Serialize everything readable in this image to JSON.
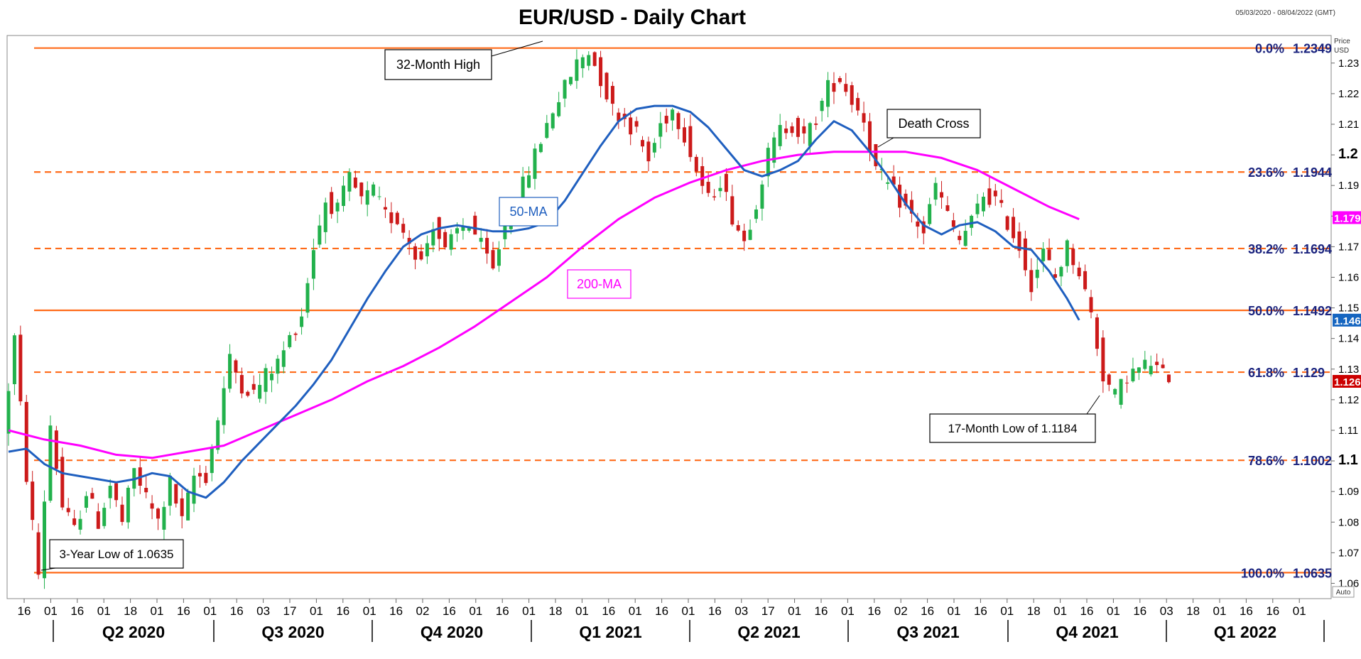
{
  "chart_data": {
    "type": "candlestick",
    "title": "EUR/USD - Daily Chart",
    "date_range": "05/03/2020 - 08/04/2022 (GMT)",
    "y_axis_label_1": "Price",
    "y_axis_label_2": "USD",
    "ylim": [
      1.055,
      1.239
    ],
    "y_ticks": [
      "1.06",
      "1.07",
      "1.08",
      "1.09",
      "1.1",
      "1.11",
      "1.12",
      "1.13",
      "1.14",
      "1.15",
      "1.16",
      "1.17",
      "1.18",
      "1.19",
      "1.2",
      "1.21",
      "1.22",
      "1.23"
    ],
    "y_ticks_bold": [
      "1.1",
      "1.2"
    ],
    "auto_label": "Auto",
    "x_day_ticks": [
      "16",
      "01",
      "16",
      "01",
      "18",
      "01",
      "16",
      "01",
      "16",
      "03",
      "17",
      "01",
      "16",
      "01",
      "16",
      "02",
      "16",
      "01",
      "16",
      "01",
      "18",
      "01",
      "16",
      "01",
      "16",
      "01",
      "16",
      "03",
      "17",
      "01",
      "16",
      "01",
      "16",
      "02",
      "16",
      "01",
      "16",
      "01",
      "18",
      "01",
      "16",
      "01",
      "16",
      "03",
      "18",
      "01",
      "16",
      "16",
      "01"
    ],
    "quarters": [
      "Q2 2020",
      "Q3 2020",
      "Q4 2020",
      "Q1 2021",
      "Q2 2021",
      "Q3 2021",
      "Q4 2021",
      "Q1 2022"
    ],
    "fib_levels": [
      {
        "pct": "0.0%",
        "value": "1.2349",
        "price": 1.2349,
        "style": "solid"
      },
      {
        "pct": "23.6%",
        "value": "1.1944",
        "price": 1.1944,
        "style": "dashed"
      },
      {
        "pct": "38.2%",
        "value": "1.1694",
        "price": 1.1694,
        "style": "dashed"
      },
      {
        "pct": "50.0%",
        "value": "1.1492",
        "price": 1.1492,
        "style": "solid"
      },
      {
        "pct": "61.8%",
        "value": "1.129",
        "price": 1.129,
        "style": "dashed"
      },
      {
        "pct": "78.6%",
        "value": "1.1002",
        "price": 1.1002,
        "style": "dashed"
      },
      {
        "pct": "100.0%",
        "value": "1.0635",
        "price": 1.0635,
        "style": "solid"
      }
    ],
    "price_tags": [
      {
        "label": "1.1795",
        "price": 1.1795,
        "color": "#ff00ff"
      },
      {
        "label": "1.1460",
        "price": 1.146,
        "color": "#1565c0"
      },
      {
        "label": "1.126",
        "price": 1.126,
        "color": "#cc0000"
      }
    ],
    "ma50": {
      "name": "50-MA",
      "color": "#1f5fbf",
      "points": [
        [
          0,
          1.103
        ],
        [
          3,
          1.104
        ],
        [
          6,
          1.099
        ],
        [
          9,
          1.096
        ],
        [
          12,
          1.095
        ],
        [
          15,
          1.094
        ],
        [
          18,
          1.093
        ],
        [
          21,
          1.094
        ],
        [
          24,
          1.096
        ],
        [
          27,
          1.095
        ],
        [
          30,
          1.09
        ],
        [
          33,
          1.088
        ],
        [
          36,
          1.093
        ],
        [
          39,
          1.1
        ],
        [
          42,
          1.106
        ],
        [
          45,
          1.112
        ],
        [
          48,
          1.118
        ],
        [
          51,
          1.125
        ],
        [
          54,
          1.133
        ],
        [
          57,
          1.143
        ],
        [
          60,
          1.153
        ],
        [
          63,
          1.162
        ],
        [
          66,
          1.17
        ],
        [
          69,
          1.174
        ],
        [
          72,
          1.176
        ],
        [
          75,
          1.177
        ],
        [
          78,
          1.176
        ],
        [
          81,
          1.175
        ],
        [
          84,
          1.175
        ],
        [
          87,
          1.176
        ],
        [
          90,
          1.178
        ],
        [
          93,
          1.185
        ],
        [
          96,
          1.194
        ],
        [
          99,
          1.203
        ],
        [
          102,
          1.211
        ],
        [
          105,
          1.215
        ],
        [
          108,
          1.216
        ],
        [
          111,
          1.216
        ],
        [
          114,
          1.214
        ],
        [
          117,
          1.209
        ],
        [
          120,
          1.202
        ],
        [
          123,
          1.195
        ],
        [
          126,
          1.193
        ],
        [
          129,
          1.195
        ],
        [
          132,
          1.198
        ],
        [
          135,
          1.205
        ],
        [
          138,
          1.211
        ],
        [
          141,
          1.208
        ],
        [
          144,
          1.201
        ],
        [
          147,
          1.193
        ],
        [
          150,
          1.184
        ],
        [
          153,
          1.177
        ],
        [
          156,
          1.174
        ],
        [
          159,
          1.177
        ],
        [
          162,
          1.178
        ],
        [
          165,
          1.175
        ],
        [
          168,
          1.17
        ],
        [
          171,
          1.169
        ],
        [
          174,
          1.162
        ],
        [
          177,
          1.153
        ],
        [
          179,
          1.146
        ]
      ]
    },
    "ma200": {
      "name": "200-MA",
      "color": "#ff00ff",
      "points": [
        [
          0,
          1.11
        ],
        [
          6,
          1.107
        ],
        [
          12,
          1.105
        ],
        [
          18,
          1.102
        ],
        [
          24,
          1.101
        ],
        [
          30,
          1.103
        ],
        [
          36,
          1.105
        ],
        [
          42,
          1.11
        ],
        [
          48,
          1.115
        ],
        [
          54,
          1.12
        ],
        [
          60,
          1.126
        ],
        [
          66,
          1.131
        ],
        [
          72,
          1.137
        ],
        [
          78,
          1.144
        ],
        [
          84,
          1.152
        ],
        [
          90,
          1.16
        ],
        [
          96,
          1.17
        ],
        [
          102,
          1.179
        ],
        [
          108,
          1.186
        ],
        [
          114,
          1.191
        ],
        [
          120,
          1.195
        ],
        [
          126,
          1.198
        ],
        [
          132,
          1.2
        ],
        [
          138,
          1.201
        ],
        [
          144,
          1.201
        ],
        [
          150,
          1.201
        ],
        [
          156,
          1.199
        ],
        [
          162,
          1.195
        ],
        [
          168,
          1.189
        ],
        [
          174,
          1.183
        ],
        [
          179,
          1.179
        ]
      ]
    },
    "annotations": [
      {
        "text": "32-Month High"
      },
      {
        "text": "50-MA"
      },
      {
        "text": "200-MA"
      },
      {
        "text": "Death Cross"
      },
      {
        "text": "17-Month Low of 1.1184"
      },
      {
        "text": "3-Year Low of 1.0635"
      }
    ],
    "candle_path": [
      [
        0,
        1.108
      ],
      [
        2,
        1.14
      ],
      [
        4,
        1.095
      ],
      [
        6,
        1.063
      ],
      [
        8,
        1.112
      ],
      [
        10,
        1.085
      ],
      [
        12,
        1.077
      ],
      [
        14,
        1.09
      ],
      [
        16,
        1.08
      ],
      [
        18,
        1.092
      ],
      [
        20,
        1.08
      ],
      [
        22,
        1.097
      ],
      [
        24,
        1.088
      ],
      [
        26,
        1.08
      ],
      [
        28,
        1.093
      ],
      [
        30,
        1.08
      ],
      [
        32,
        1.095
      ],
      [
        34,
        1.095
      ],
      [
        36,
        1.114
      ],
      [
        38,
        1.133
      ],
      [
        40,
        1.125
      ],
      [
        42,
        1.122
      ],
      [
        44,
        1.128
      ],
      [
        46,
        1.132
      ],
      [
        48,
        1.14
      ],
      [
        50,
        1.148
      ],
      [
        52,
        1.17
      ],
      [
        54,
        1.185
      ],
      [
        56,
        1.182
      ],
      [
        58,
        1.192
      ],
      [
        60,
        1.185
      ],
      [
        62,
        1.188
      ],
      [
        64,
        1.18
      ],
      [
        66,
        1.179
      ],
      [
        68,
        1.172
      ],
      [
        70,
        1.165
      ],
      [
        72,
        1.178
      ],
      [
        74,
        1.168
      ],
      [
        76,
        1.175
      ],
      [
        78,
        1.178
      ],
      [
        80,
        1.17
      ],
      [
        82,
        1.162
      ],
      [
        84,
        1.178
      ],
      [
        86,
        1.185
      ],
      [
        88,
        1.195
      ],
      [
        90,
        1.205
      ],
      [
        92,
        1.215
      ],
      [
        94,
        1.222
      ],
      [
        96,
        1.23
      ],
      [
        98,
        1.234
      ],
      [
        100,
        1.225
      ],
      [
        102,
        1.215
      ],
      [
        104,
        1.212
      ],
      [
        106,
        1.207
      ],
      [
        108,
        1.198
      ],
      [
        110,
        1.21
      ],
      [
        112,
        1.215
      ],
      [
        114,
        1.207
      ],
      [
        116,
        1.195
      ],
      [
        118,
        1.185
      ],
      [
        120,
        1.192
      ],
      [
        122,
        1.18
      ],
      [
        124,
        1.172
      ],
      [
        126,
        1.185
      ],
      [
        128,
        1.2
      ],
      [
        130,
        1.208
      ],
      [
        132,
        1.21
      ],
      [
        134,
        1.205
      ],
      [
        136,
        1.212
      ],
      [
        138,
        1.222
      ],
      [
        140,
        1.225
      ],
      [
        142,
        1.218
      ],
      [
        144,
        1.212
      ],
      [
        146,
        1.195
      ],
      [
        148,
        1.19
      ],
      [
        150,
        1.185
      ],
      [
        152,
        1.18
      ],
      [
        154,
        1.175
      ],
      [
        156,
        1.19
      ],
      [
        158,
        1.18
      ],
      [
        160,
        1.172
      ],
      [
        162,
        1.178
      ],
      [
        164,
        1.187
      ],
      [
        166,
        1.185
      ],
      [
        168,
        1.178
      ],
      [
        170,
        1.17
      ],
      [
        172,
        1.158
      ],
      [
        174,
        1.168
      ],
      [
        176,
        1.16
      ],
      [
        178,
        1.17
      ],
      [
        180,
        1.162
      ],
      [
        182,
        1.148
      ],
      [
        184,
        1.128
      ],
      [
        186,
        1.121
      ],
      [
        188,
        1.128
      ],
      [
        190,
        1.13
      ],
      [
        192,
        1.132
      ],
      [
        194,
        1.128
      ]
    ]
  }
}
